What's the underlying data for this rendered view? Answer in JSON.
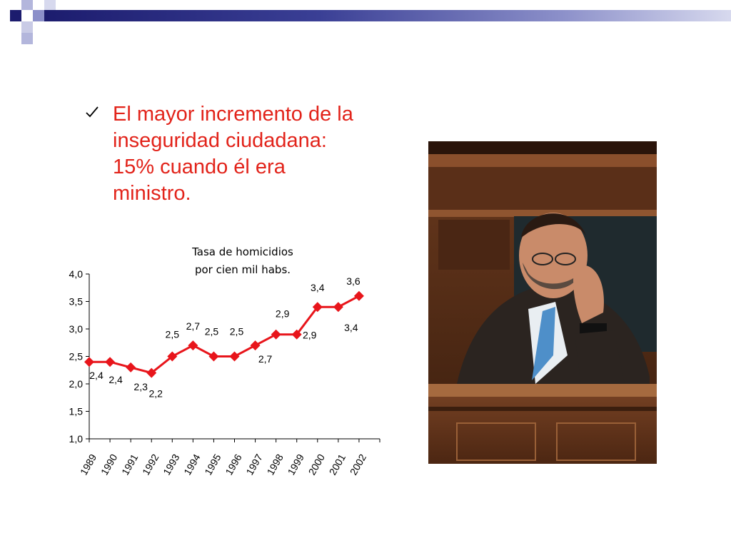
{
  "slide": {
    "bullet_text": "El mayor incremento de la\ninseguridad ciudadana:\n15% cuando él era\nministro.",
    "bullet_icon": "checkmark-icon",
    "accent_color": "#e2231a",
    "photo_icon": "photo-man-sleeping-in-parliament"
  },
  "chart_data": {
    "type": "line",
    "title": "Tasa de homicidios\npor cien mil habs.",
    "categories": [
      "1989",
      "1990",
      "1991",
      "1992",
      "1993",
      "1994",
      "1995",
      "1996",
      "1997",
      "1998",
      "1999",
      "2000",
      "2001",
      "2002"
    ],
    "series": [
      {
        "values": [
          2.4,
          2.4,
          2.3,
          2.2,
          2.5,
          2.7,
          2.5,
          2.5,
          2.7,
          2.9,
          2.9,
          3.4,
          3.4,
          3.6
        ]
      }
    ],
    "data_labels": [
      "2,4",
      "2,4",
      "2,3",
      "2,2",
      "2,5",
      "2,7",
      "2,5",
      "2,5",
      "2,7",
      "2,9",
      "2,9",
      "3,4",
      "3,4",
      "3,6"
    ],
    "yticks": [
      "1,0",
      "1,5",
      "2,0",
      "2,5",
      "3,0",
      "3,5",
      "4,0"
    ],
    "ylim": [
      1.0,
      4.0
    ],
    "line_color": "#e8151b",
    "grid": false,
    "legend": "none"
  }
}
